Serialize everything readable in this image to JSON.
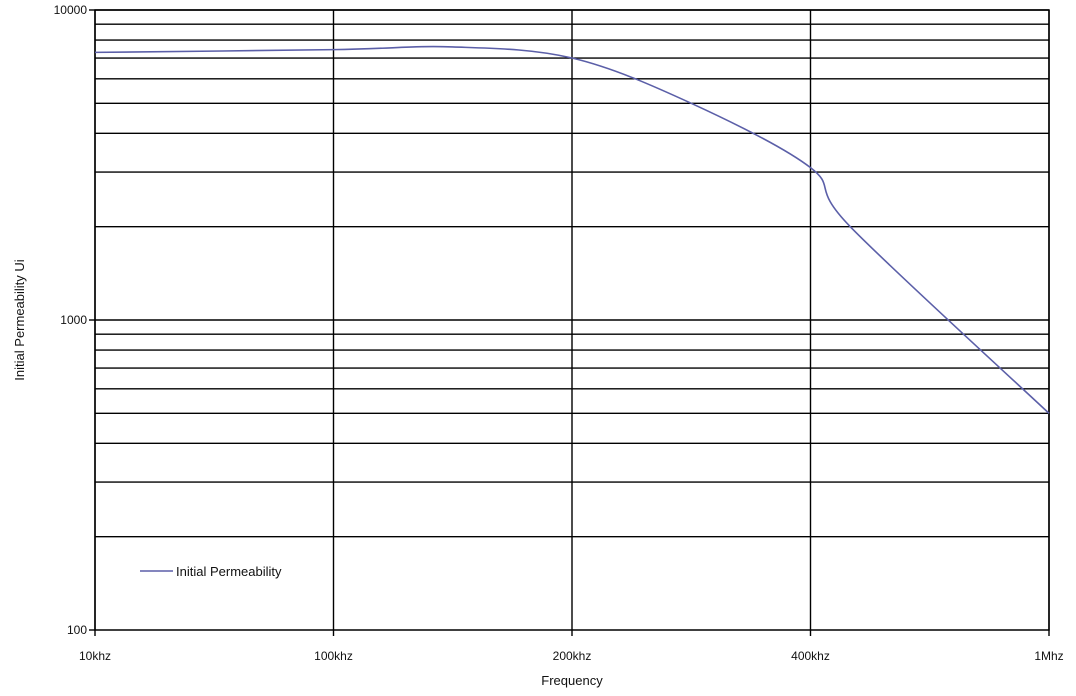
{
  "chart_data": {
    "type": "line",
    "xlabel": "Frequency",
    "ylabel": "Initial Permeability Ui",
    "x_categories": [
      "10khz",
      "100khz",
      "200khz",
      "400khz",
      "1Mhz"
    ],
    "y_scale": "log",
    "ylim": [
      100,
      10000
    ],
    "y_ticks": [
      {
        "value": 100,
        "label": "100"
      },
      {
        "value": 1000,
        "label": "1000"
      },
      {
        "value": 10000,
        "label": "10000"
      }
    ],
    "y_gridlines": [
      200,
      300,
      400,
      500,
      600,
      700,
      800,
      900,
      1000,
      2000,
      3000,
      4000,
      5000,
      6000,
      7000,
      8000,
      9000,
      10000
    ],
    "x_gridlines": true,
    "legend": {
      "position": "bottom-left",
      "entries": [
        "Initial Permeability"
      ]
    },
    "series": [
      {
        "name": "Initial Permeability",
        "color": "#5b5fa8",
        "points": [
          {
            "x": "10khz",
            "y": 7300
          },
          {
            "x": "100khz",
            "y": 7450
          },
          {
            "x": "150khz",
            "y": 7600
          },
          {
            "x": "200khz",
            "y": 7000
          },
          {
            "x": "300khz",
            "y": 5000
          },
          {
            "x": "400khz",
            "y": 3100
          },
          {
            "x": "500khz",
            "y": 2000
          },
          {
            "x": "1Mhz",
            "y": 500
          }
        ]
      }
    ]
  }
}
